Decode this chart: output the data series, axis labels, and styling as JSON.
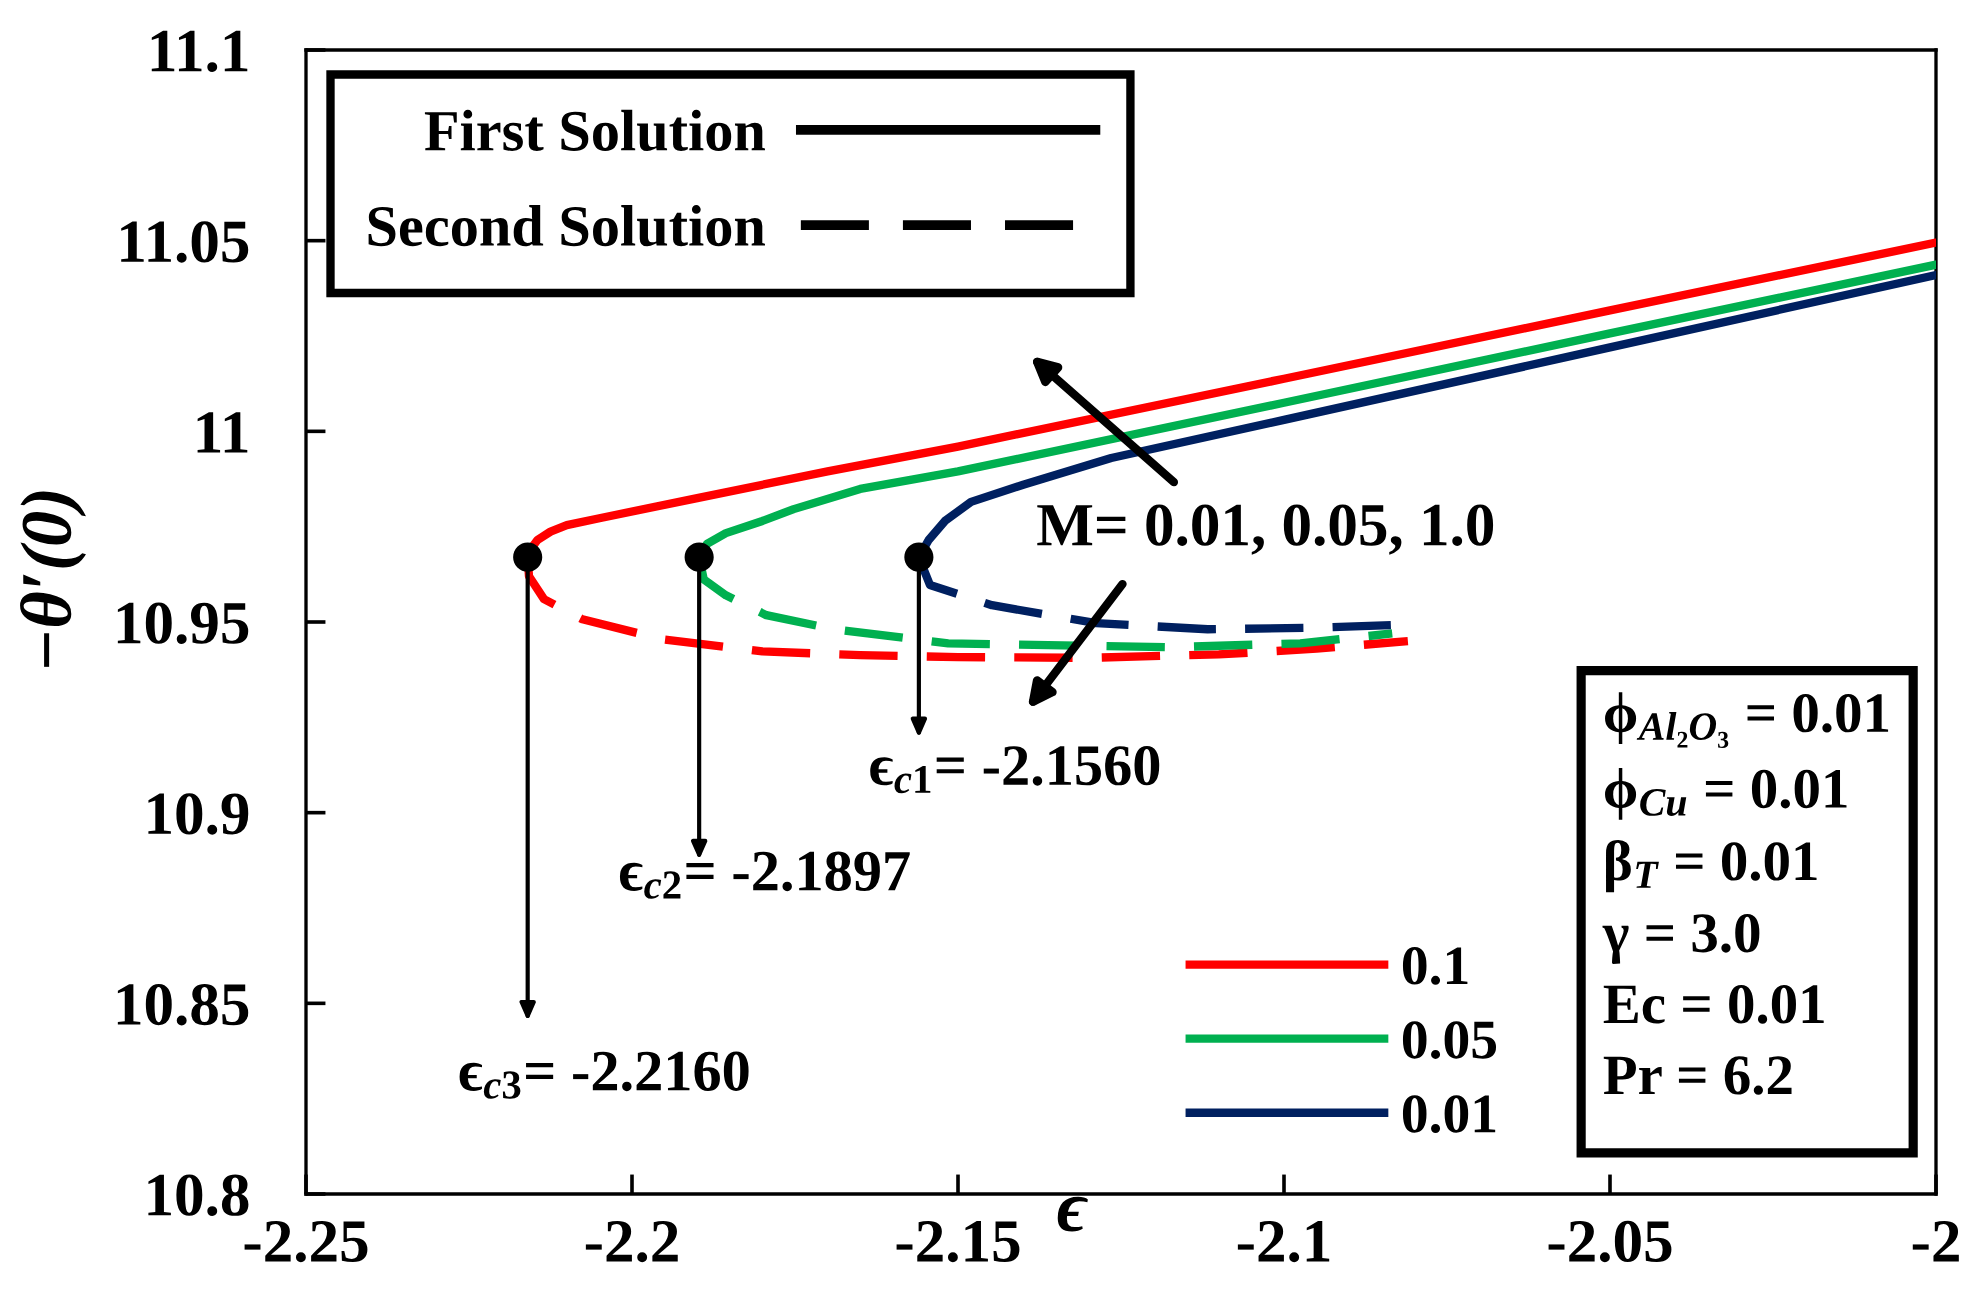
{
  "chart_data": {
    "type": "line",
    "xlabel": "ϵ",
    "ylabel": "−θ′(0)",
    "xlim": [
      -2.25,
      -2
    ],
    "xticks": [
      -2.25,
      -2.2,
      -2.15,
      -2.1,
      -2.05,
      -2
    ],
    "ylim": [
      10.8,
      11.1
    ],
    "yticks": [
      10.8,
      10.85,
      10.9,
      10.95,
      11,
      11.05,
      11.1
    ],
    "legend": "bottom right",
    "series": [
      {
        "name": "First Solution",
        "color": "#000000",
        "line_style": "solid"
      },
      {
        "name": "Second Solution",
        "color": "#000000",
        "line_style": "dashed"
      },
      {
        "name": "0.1",
        "color": "#ff0000",
        "line_style": "solid",
        "x": [
          -2.216,
          -2.2155,
          -2.2145,
          -2.2125,
          -2.21,
          -2.205,
          -2.19,
          -2.17,
          -2.15,
          -2.1,
          -2.05,
          -2
        ],
        "values": [
          10.967,
          10.9692,
          10.9715,
          10.9737,
          10.9754,
          10.9772,
          10.9825,
          10.9895,
          10.996,
          11.0138,
          11.0317,
          11.0495
        ]
      },
      {
        "name": "0.05",
        "color": "#00b050",
        "line_style": "solid",
        "x": [
          -2.1897,
          -2.1885,
          -2.1856,
          -2.18,
          -2.1752,
          -2.165,
          -2.15,
          -2.1,
          -2.05,
          -2
        ],
        "values": [
          10.967,
          10.9705,
          10.9733,
          10.9765,
          10.9796,
          10.9849,
          10.9895,
          11.0075,
          11.0257,
          11.0437
        ]
      },
      {
        "name": "0.01",
        "color": "#002060",
        "line_style": "solid",
        "x": [
          -2.156,
          -2.1545,
          -2.152,
          -2.148,
          -2.14,
          -2.1265,
          -2.1,
          -2.05,
          -2
        ],
        "values": [
          10.967,
          10.9715,
          10.9765,
          10.9815,
          10.986,
          10.993,
          11.003,
          11.022,
          11.041
        ]
      },
      {
        "color": "#ff0000",
        "line_style": "dashed",
        "x": [
          -2.216,
          -2.2158,
          -2.2135,
          -2.2076,
          -2.1954,
          -2.18,
          -2.165,
          -2.15,
          -2.13,
          -2.11,
          -2.095,
          -2.081
        ],
        "values": [
          10.967,
          10.962,
          10.956,
          10.9507,
          10.9455,
          10.9423,
          10.9413,
          10.9408,
          10.9406,
          10.9415,
          10.943,
          10.945
        ]
      },
      {
        "color": "#00b050",
        "line_style": "dashed",
        "x": [
          -2.1897,
          -2.189,
          -2.1856,
          -2.1794,
          -2.169,
          -2.1515,
          -2.1175,
          -2.0975,
          -2.0834
        ],
        "values": [
          10.967,
          10.9612,
          10.957,
          10.9518,
          10.9481,
          10.9444,
          10.9434,
          10.9444,
          10.947
        ]
      },
      {
        "color": "#002060",
        "line_style": "dashed",
        "x": [
          -2.156,
          -2.1543,
          -2.1448,
          -2.1288,
          -2.1117,
          -2.095,
          -2.0834
        ],
        "values": [
          10.967,
          10.9597,
          10.9544,
          10.9497,
          10.9481,
          10.9485,
          10.9492
        ]
      },
      {
        "type": "scatter",
        "color": "#000000",
        "marker": "circle",
        "x": [
          -2.216,
          -2.1897,
          -2.156
        ],
        "values": [
          10.967,
          10.967,
          10.967
        ]
      }
    ],
    "annotations": [
      {
        "text": "ϵ$_{c1}$= -2.1560",
        "x": -2.156,
        "y": 10.967
      },
      {
        "text": "ϵ$_{c2}$= -2.1897",
        "x": -2.1897,
        "y": 10.967
      },
      {
        "text": "ϵ$_{c3}$= -2.2160",
        "x": -2.216,
        "y": 10.967
      },
      "M= 0.01, 0.05, 1.0",
      "ϕ$_{Al₂O₃}$ = 0.01",
      "ϕ$_{Cu}$ = 0.01",
      "β$_{T}$ = 0.01",
      "γ = 3.0",
      "Ec = 0.01",
      "Pr = 6.2"
    ]
  }
}
